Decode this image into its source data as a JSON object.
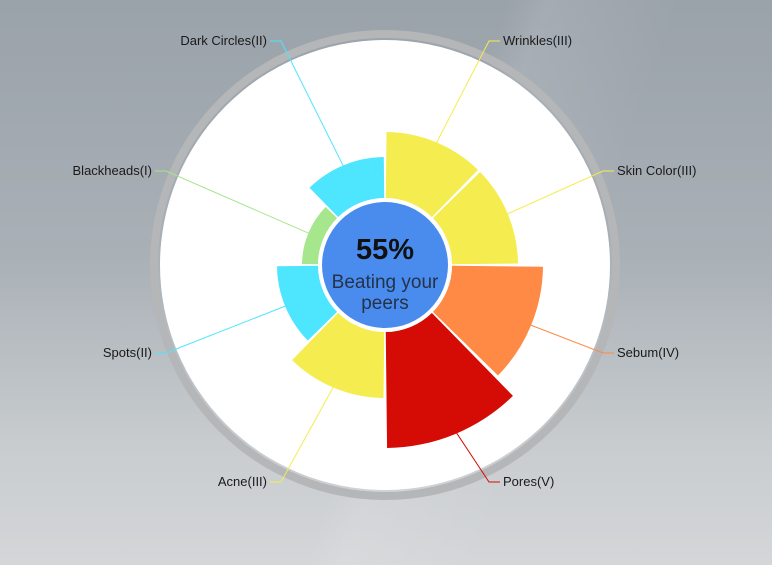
{
  "chart_data": {
    "type": "polar-area",
    "title": "",
    "center": {
      "value": "55%",
      "caption_lines": [
        "Beating your",
        "peers"
      ]
    },
    "max_level": 5,
    "slices": [
      {
        "name": "Wrinkles",
        "label": "Wrinkles(III)",
        "level": 3,
        "color": "#f5ec4f"
      },
      {
        "name": "Skin Color",
        "label": "Skin Color(III)",
        "level": 3,
        "color": "#f5ec4f"
      },
      {
        "name": "Sebum",
        "label": "Sebum(IV)",
        "level": 4,
        "color": "#ff8a45"
      },
      {
        "name": "Pores",
        "label": "Pores(V)",
        "level": 5,
        "color": "#d40c05"
      },
      {
        "name": "Acne",
        "label": "Acne(III)",
        "level": 3,
        "color": "#f5ec4f"
      },
      {
        "name": "Spots",
        "label": "Spots(II)",
        "level": 2,
        "color": "#4ee5ff"
      },
      {
        "name": "Blackheads",
        "label": "Blackheads(I)",
        "level": 1,
        "color": "#a6e68c"
      },
      {
        "name": "Dark Circles",
        "label": "Dark Circles(II)",
        "level": 2,
        "color": "#4ee5ff"
      }
    ],
    "colors": {
      "center_fill": "#4a8cee",
      "level_1": "#a6e68c",
      "level_2": "#4ee5ff",
      "level_3": "#f5ec4f",
      "level_4": "#ff8a45",
      "level_5": "#d40c05"
    }
  }
}
